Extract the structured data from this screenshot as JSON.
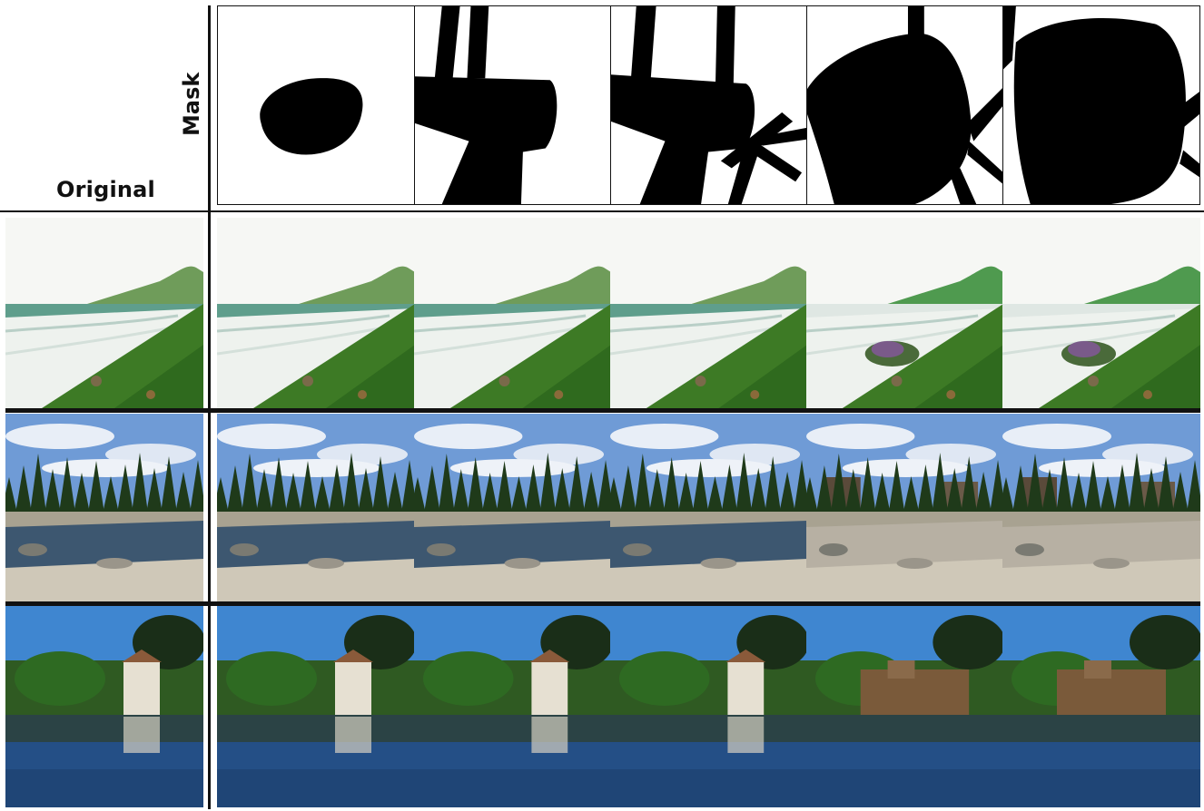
{
  "labels": {
    "original": "Original",
    "mask": "Mask"
  },
  "rows": [
    {
      "scene": "coastline",
      "sky": "#f4f6f3",
      "water": "#e9efe9",
      "land": "#3f7a2a"
    },
    {
      "scene": "river-forest",
      "sky": "#6d9ad4",
      "water": "#3f5a74",
      "land": "#c9c2b3"
    },
    {
      "scene": "castle-lake",
      "sky": "#3f86d0",
      "water": "#234f86",
      "land": "#3b6a2a"
    }
  ],
  "masks": [
    {
      "id": 1
    },
    {
      "id": 2
    },
    {
      "id": 3
    },
    {
      "id": 4
    },
    {
      "id": 5
    }
  ]
}
